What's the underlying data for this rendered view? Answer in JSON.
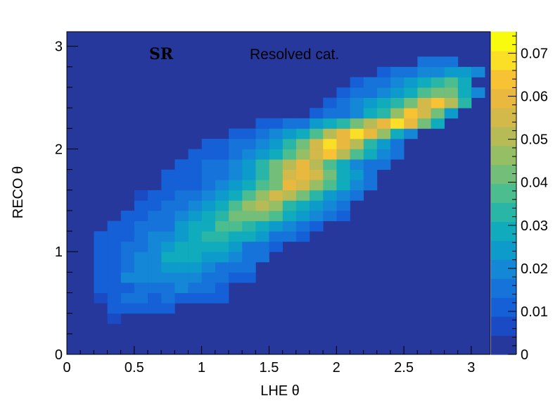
{
  "chart_data": {
    "type": "heatmap",
    "xlabel": "LHE θ",
    "ylabel": "RECO θ",
    "xlim": [
      0,
      3.1416
    ],
    "ylim": [
      0,
      3.1416
    ],
    "nbins_x": 32,
    "nbins_y": 32,
    "x_ticks": [
      "0",
      "0.5",
      "1",
      "1.5",
      "2",
      "2.5",
      "3"
    ],
    "x_tick_values": [
      0,
      0.5,
      1,
      1.5,
      2,
      2.5,
      3
    ],
    "y_ticks": [
      "0",
      "1",
      "2",
      "3"
    ],
    "y_tick_values": [
      0,
      1,
      2,
      3
    ],
    "colorbar": {
      "range": [
        0,
        0.075
      ],
      "ticks": [
        "0",
        "0.01",
        "0.02",
        "0.03",
        "0.04",
        "0.05",
        "0.06",
        "0.07"
      ],
      "tick_values": [
        0,
        0.01,
        0.02,
        0.03,
        0.04,
        0.05,
        0.06,
        0.07
      ],
      "palette": [
        "#27389c",
        "#1b4ac5",
        "#1560d6",
        "#1673d9",
        "#1487d6",
        "#0d9bcb",
        "#10abbc",
        "#29b6a6",
        "#4cbd8f",
        "#73be78",
        "#96be64",
        "#b7bb55",
        "#d3b949",
        "#e9b93f",
        "#f7c334",
        "#fbde26",
        "#f9fb0e"
      ]
    },
    "annotations": [
      "SR",
      "Resolved cat."
    ],
    "rows": [
      {
        "y": 0.35,
        "x0": 0.35,
        "values": [
          0.004
        ]
      },
      {
        "y": 0.45,
        "x0": 0.35,
        "values": [
          0.005,
          0.009,
          0.008,
          0.008,
          0.007
        ]
      },
      {
        "y": 0.55,
        "x0": 0.25,
        "values": [
          0.004,
          0.005,
          0.012,
          0.01,
          0.009,
          0.01,
          0.008,
          0.008,
          0.007,
          0.006
        ]
      },
      {
        "y": 0.65,
        "x0": 0.25,
        "values": [
          0.006,
          0.006,
          0.008,
          0.01,
          0.012,
          0.014,
          0.015,
          0.013,
          0.012,
          0.008
        ]
      },
      {
        "y": 0.75,
        "x0": 0.25,
        "values": [
          0.006,
          0.006,
          0.017,
          0.015,
          0.016,
          0.016,
          0.018,
          0.016,
          0.013,
          0.011,
          0.008,
          0.007
        ]
      },
      {
        "y": 0.85,
        "x0": 0.25,
        "values": [
          0.006,
          0.006,
          0.01,
          0.015,
          0.016,
          0.019,
          0.021,
          0.02,
          0.016,
          0.014,
          0.012,
          0.01
        ]
      },
      {
        "y": 0.95,
        "x0": 0.25,
        "values": [
          0.006,
          0.007,
          0.01,
          0.015,
          0.018,
          0.024,
          0.025,
          0.025,
          0.023,
          0.021,
          0.018,
          0.014,
          0.012
        ]
      },
      {
        "y": 1.05,
        "x0": 0.25,
        "values": [
          0.006,
          0.007,
          0.011,
          0.012,
          0.016,
          0.02,
          0.027,
          0.028,
          0.027,
          0.026,
          0.02,
          0.014,
          0.01,
          0.008
        ]
      },
      {
        "y": 1.15,
        "x0": 0.25,
        "values": [
          0.005,
          0.006,
          0.008,
          0.012,
          0.015,
          0.017,
          0.021,
          0.028,
          0.03,
          0.03,
          0.027,
          0.025,
          0.02,
          0.013,
          0.011,
          0.007
        ]
      },
      {
        "y": 1.25,
        "x0": 0.35,
        "values": [
          0.006,
          0.008,
          0.01,
          0.013,
          0.014,
          0.019,
          0.025,
          0.028,
          0.035,
          0.037,
          0.032,
          0.027,
          0.02,
          0.017,
          0.012,
          0.009
        ]
      },
      {
        "y": 1.35,
        "x0": 0.45,
        "values": [
          0.005,
          0.007,
          0.012,
          0.013,
          0.017,
          0.021,
          0.024,
          0.031,
          0.039,
          0.042,
          0.04,
          0.033,
          0.027,
          0.02,
          0.015,
          0.012,
          0.009
        ]
      },
      {
        "y": 1.45,
        "x0": 0.55,
        "values": [
          0.006,
          0.008,
          0.01,
          0.012,
          0.015,
          0.02,
          0.027,
          0.036,
          0.045,
          0.048,
          0.045,
          0.032,
          0.026,
          0.019,
          0.016,
          0.012
        ]
      },
      {
        "y": 1.55,
        "x0": 0.55,
        "values": [
          0.004,
          0.005,
          0.009,
          0.011,
          0.013,
          0.016,
          0.02,
          0.028,
          0.037,
          0.045,
          0.053,
          0.048,
          0.039,
          0.029,
          0.023,
          0.018,
          0.013
        ]
      },
      {
        "y": 1.65,
        "x0": 0.75,
        "values": [
          0.006,
          0.007,
          0.009,
          0.012,
          0.015,
          0.019,
          0.025,
          0.033,
          0.042,
          0.057,
          0.052,
          0.045,
          0.033,
          0.024,
          0.017,
          0.012
        ]
      },
      {
        "y": 1.75,
        "x0": 0.75,
        "values": [
          0.005,
          0.006,
          0.009,
          0.011,
          0.013,
          0.017,
          0.022,
          0.029,
          0.038,
          0.052,
          0.058,
          0.052,
          0.039,
          0.028,
          0.02,
          0.013
        ]
      },
      {
        "y": 1.85,
        "x0": 0.85,
        "values": [
          0.006,
          0.008,
          0.01,
          0.013,
          0.017,
          0.023,
          0.029,
          0.038,
          0.049,
          0.057,
          0.05,
          0.037,
          0.025,
          0.018,
          0.013,
          0.011
        ]
      },
      {
        "y": 1.95,
        "x0": 0.95,
        "values": [
          0.006,
          0.008,
          0.009,
          0.012,
          0.016,
          0.021,
          0.028,
          0.037,
          0.046,
          0.056,
          0.062,
          0.048,
          0.036,
          0.025,
          0.018,
          0.013
        ]
      },
      {
        "y": 2.05,
        "x0": 1.05,
        "values": [
          0.006,
          0.008,
          0.01,
          0.014,
          0.018,
          0.023,
          0.031,
          0.04,
          0.052,
          0.068,
          0.06,
          0.048,
          0.031,
          0.019,
          0.013
        ]
      },
      {
        "y": 2.15,
        "x0": 1.25,
        "values": [
          0.006,
          0.009,
          0.011,
          0.015,
          0.02,
          0.026,
          0.036,
          0.048,
          0.06,
          0.07,
          0.06,
          0.043,
          0.028,
          0.017
        ]
      },
      {
        "y": 2.25,
        "x0": 1.45,
        "values": [
          0.006,
          0.008,
          0.01,
          0.014,
          0.019,
          0.024,
          0.032,
          0.04,
          0.049,
          0.058,
          0.068,
          0.058,
          0.038,
          0.024
        ]
      },
      {
        "y": 2.35,
        "x0": 1.85,
        "values": [
          0.009,
          0.011,
          0.014,
          0.018,
          0.024,
          0.032,
          0.045,
          0.062,
          0.055,
          0.038,
          0.022
        ]
      },
      {
        "y": 2.45,
        "x0": 1.95,
        "values": [
          0.009,
          0.012,
          0.015,
          0.019,
          0.024,
          0.03,
          0.04,
          0.052,
          0.062,
          0.05,
          0.03
        ]
      },
      {
        "y": 2.55,
        "x0": 2.05,
        "values": [
          0.009,
          0.011,
          0.014,
          0.017,
          0.021,
          0.027,
          0.034,
          0.04,
          0.038,
          0.028,
          0.016
        ]
      },
      {
        "y": 2.65,
        "x0": 2.15,
        "values": [
          0.009,
          0.011,
          0.013,
          0.016,
          0.019,
          0.024,
          0.029,
          0.033,
          0.024
        ]
      },
      {
        "y": 2.75,
        "x0": 2.35,
        "values": [
          0.009,
          0.01,
          0.012,
          0.016,
          0.017,
          0.021,
          0.02,
          0.015
        ]
      },
      {
        "y": 2.85,
        "x0": 2.65,
        "values": [
          0.01,
          0.011,
          0.012
        ]
      }
    ]
  }
}
